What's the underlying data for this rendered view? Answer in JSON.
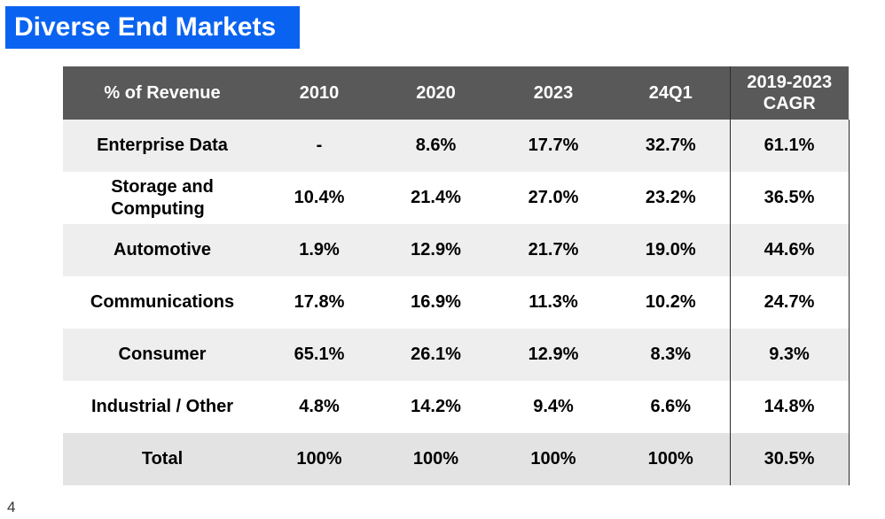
{
  "title": "Diverse End Markets",
  "page_number": "4",
  "table": {
    "headers": [
      "% of Revenue",
      "2010",
      "2020",
      "2023",
      "24Q1"
    ],
    "cagr_header_line1": "2019-2023",
    "cagr_header_line2": "CAGR",
    "rows": [
      {
        "label": "Enterprise Data",
        "values": [
          "-",
          "8.6%",
          "17.7%",
          "32.7%"
        ],
        "cagr": "61.1%"
      },
      {
        "label_line1": "Storage and",
        "label_line2": "Computing",
        "values": [
          "10.4%",
          "21.4%",
          "27.0%",
          "23.2%"
        ],
        "cagr": "36.5%"
      },
      {
        "label": "Automotive",
        "values": [
          "1.9%",
          "12.9%",
          "21.7%",
          "19.0%"
        ],
        "cagr": "44.6%"
      },
      {
        "label": "Communications",
        "values": [
          "17.8%",
          "16.9%",
          "11.3%",
          "10.2%"
        ],
        "cagr": "24.7%"
      },
      {
        "label": "Consumer",
        "values": [
          "65.1%",
          "26.1%",
          "12.9%",
          "8.3%"
        ],
        "cagr": "9.3%"
      },
      {
        "label": "Industrial / Other",
        "values": [
          "4.8%",
          "14.2%",
          "9.4%",
          "6.6%"
        ],
        "cagr": "14.8%"
      },
      {
        "label": "Total",
        "values": [
          "100%",
          "100%",
          "100%",
          "100%"
        ],
        "cagr": "30.5%"
      }
    ]
  },
  "colors": {
    "title_background": "#0a63f0",
    "header_background": "#595959",
    "shaded_row": "#eeeeee",
    "total_row": "#e3e3e3"
  }
}
